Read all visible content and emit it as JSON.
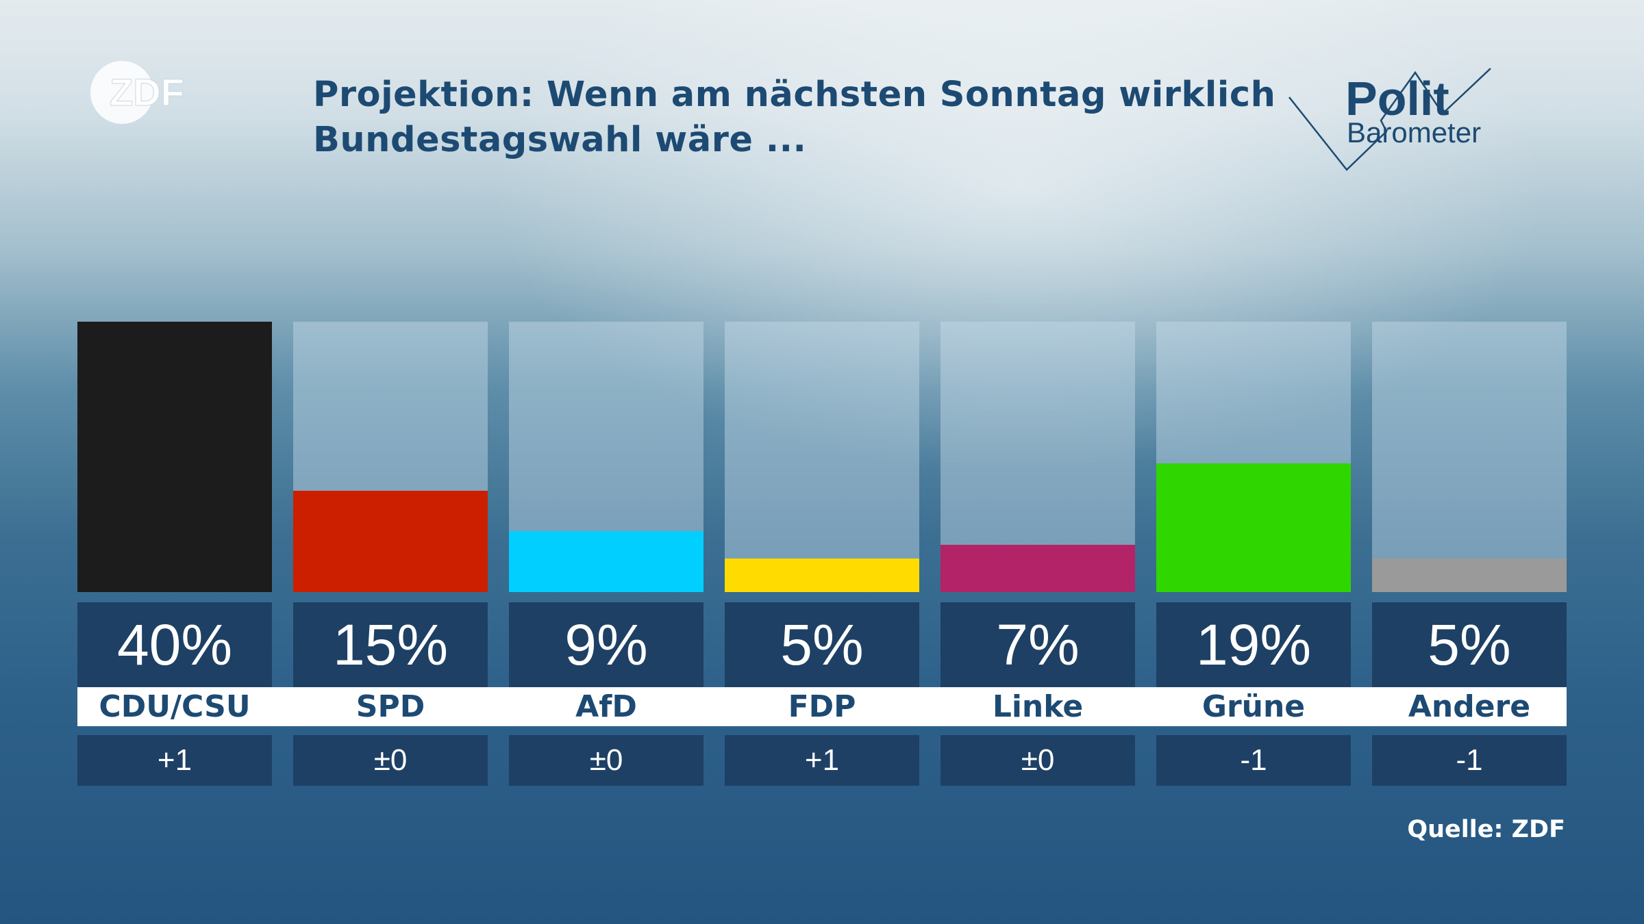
{
  "header": {
    "logo_text": "ZDF",
    "title_line1": "Projektion: Wenn am nächsten Sonntag wirklich",
    "title_line2": "Bundestagswahl wäre ...",
    "brand_line1": "Polit",
    "brand_line2": "Barometer"
  },
  "chart_data": {
    "type": "bar",
    "title": "Projektion: Wenn am nächsten Sonntag wirklich Bundestagswahl wäre ...",
    "categories": [
      "CDU/CSU",
      "SPD",
      "AfD",
      "FDP",
      "Linke",
      "Grüne",
      "Andere"
    ],
    "values": [
      40,
      15,
      9,
      5,
      7,
      19,
      5
    ],
    "value_labels": [
      "40%",
      "15%",
      "9%",
      "5%",
      "7%",
      "19%",
      "5%"
    ],
    "changes": [
      "+1",
      "±0",
      "±0",
      "+1",
      "±0",
      "-1",
      "-1"
    ],
    "colors": [
      "#1c1c1c",
      "#cc1f00",
      "#00cfff",
      "#ffdb00",
      "#b32368",
      "#2fd600",
      "#9a9a9a"
    ],
    "ylim": [
      0,
      40
    ],
    "unit": "%"
  },
  "footer": {
    "source": "Quelle: ZDF"
  },
  "colors": {
    "title": "#1d4a72",
    "panel": "#1e4065"
  }
}
